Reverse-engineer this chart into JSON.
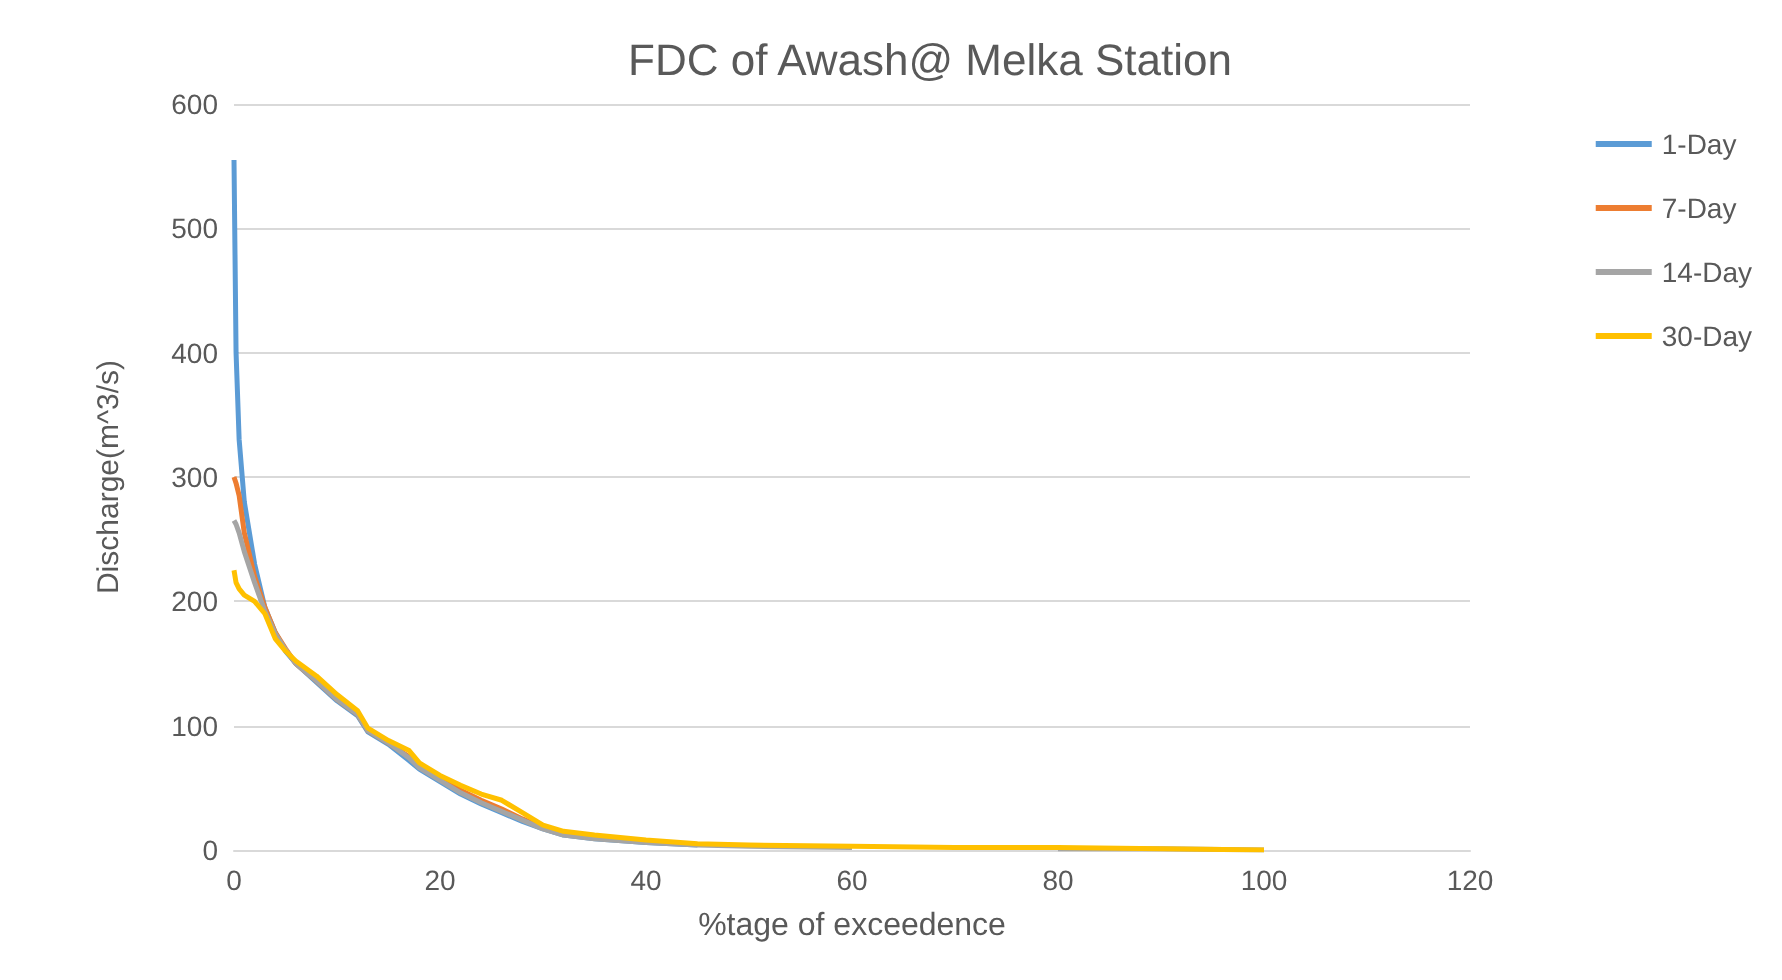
{
  "chart_data": {
    "type": "line",
    "title": "FDC of Awash@ Melka Station",
    "xlabel": "%tage of exceedence",
    "ylabel": "Discharge(m^3/s)",
    "x": [
      0,
      0.2,
      0.5,
      1,
      2,
      3,
      4,
      5,
      6,
      8,
      10,
      12,
      13,
      15,
      17,
      18,
      20,
      22,
      24,
      26,
      28,
      30,
      32,
      35,
      40,
      45,
      50,
      60,
      70,
      80,
      90,
      100
    ],
    "series": [
      {
        "name": "1-Day",
        "color": "#5b9bd5",
        "values": [
          555,
          400,
          330,
          280,
          230,
          195,
          175,
          160,
          150,
          135,
          120,
          108,
          95,
          85,
          72,
          65,
          55,
          45,
          37,
          30,
          23,
          17,
          12,
          9,
          6,
          4,
          null,
          null,
          null,
          null,
          null,
          null
        ]
      },
      {
        "name": "7-Day",
        "color": "#ed7d31",
        "values": [
          300,
          295,
          285,
          255,
          220,
          195,
          175,
          162,
          150,
          136,
          121,
          109,
          96,
          86,
          75,
          67,
          58,
          48,
          40,
          33,
          25,
          18,
          13,
          null,
          null,
          null,
          null,
          null,
          null,
          null,
          null,
          null
        ]
      },
      {
        "name": "14-Day",
        "color": "#a5a5a5",
        "values": [
          265,
          262,
          255,
          240,
          215,
          192,
          174,
          161,
          150,
          136,
          121,
          109,
          96,
          86,
          74,
          66,
          56,
          46,
          38,
          31,
          24,
          17,
          12,
          9,
          6,
          4,
          3,
          2,
          null,
          1,
          1,
          0
        ]
      },
      {
        "name": "30-Day",
        "color": "#ffc000",
        "values": [
          225,
          215,
          210,
          205,
          200,
          190,
          170,
          160,
          152,
          140,
          125,
          112,
          98,
          88,
          80,
          70,
          60,
          52,
          45,
          40,
          30,
          20,
          15,
          12,
          8,
          5,
          4,
          3,
          2,
          2,
          1,
          0
        ]
      }
    ],
    "xlim": [
      0,
      120
    ],
    "xticks": [
      0,
      20,
      40,
      60,
      80,
      100,
      120
    ],
    "ylim": [
      0,
      600
    ],
    "yticks": [
      0,
      100,
      200,
      300,
      400,
      500,
      600
    ],
    "grid": "y",
    "legend": "right",
    "marker": "none",
    "line_style": "solid"
  }
}
